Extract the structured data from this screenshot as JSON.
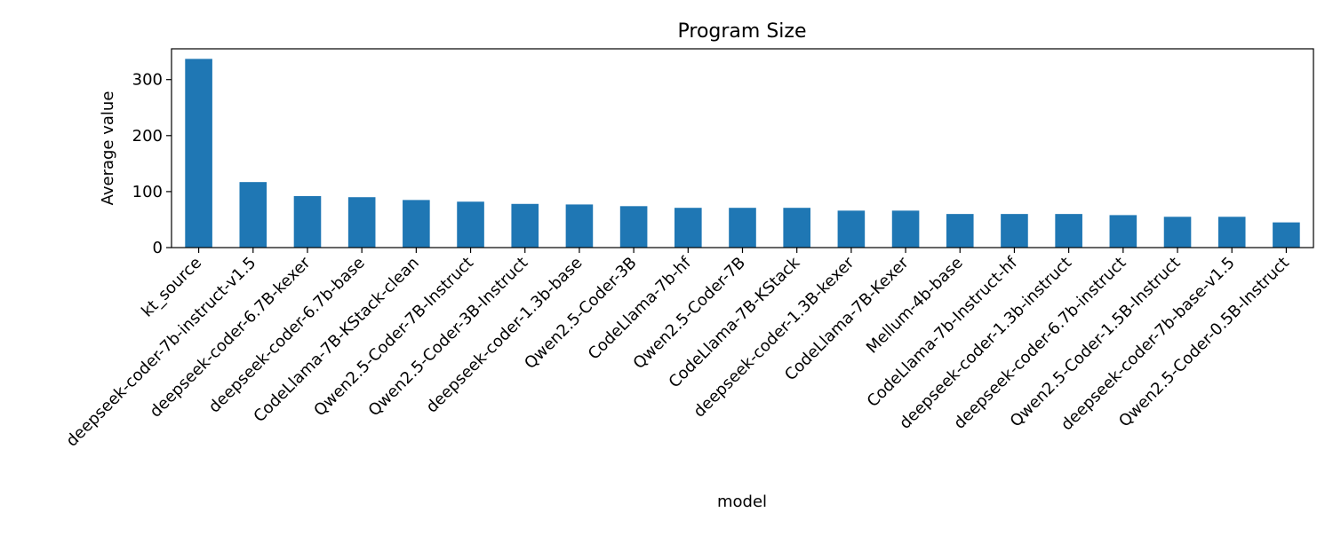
{
  "chart_data": {
    "type": "bar",
    "title": "Program Size",
    "xlabel": "model",
    "ylabel": "Average value",
    "ylim": [
      0,
      355
    ],
    "yticks": [
      0,
      100,
      200,
      300
    ],
    "grid": false,
    "bar_color": "#1f77b4",
    "categories": [
      "kt_source",
      "deepseek-coder-7b-instruct-v1.5",
      "deepseek-coder-6.7B-kexer",
      "deepseek-coder-6.7b-base",
      "CodeLlama-7B-KStack-clean",
      "Qwen2.5-Coder-7B-Instruct",
      "Qwen2.5-Coder-3B-Instruct",
      "deepseek-coder-1.3b-base",
      "Qwen2.5-Coder-3B",
      "CodeLlama-7b-hf",
      "Qwen2.5-Coder-7B",
      "CodeLlama-7B-KStack",
      "deepseek-coder-1.3B-kexer",
      "CodeLlama-7B-Kexer",
      "Mellum-4b-base",
      "CodeLlama-7b-Instruct-hf",
      "deepseek-coder-1.3b-instruct",
      "deepseek-coder-6.7b-instruct",
      "Qwen2.5-Coder-1.5B-Instruct",
      "deepseek-coder-7b-base-v1.5",
      "Qwen2.5-Coder-0.5B-Instruct"
    ],
    "values": [
      337,
      117,
      92,
      90,
      85,
      82,
      78,
      77,
      74,
      71,
      71,
      71,
      66,
      66,
      60,
      60,
      60,
      58,
      55,
      55,
      45
    ]
  }
}
